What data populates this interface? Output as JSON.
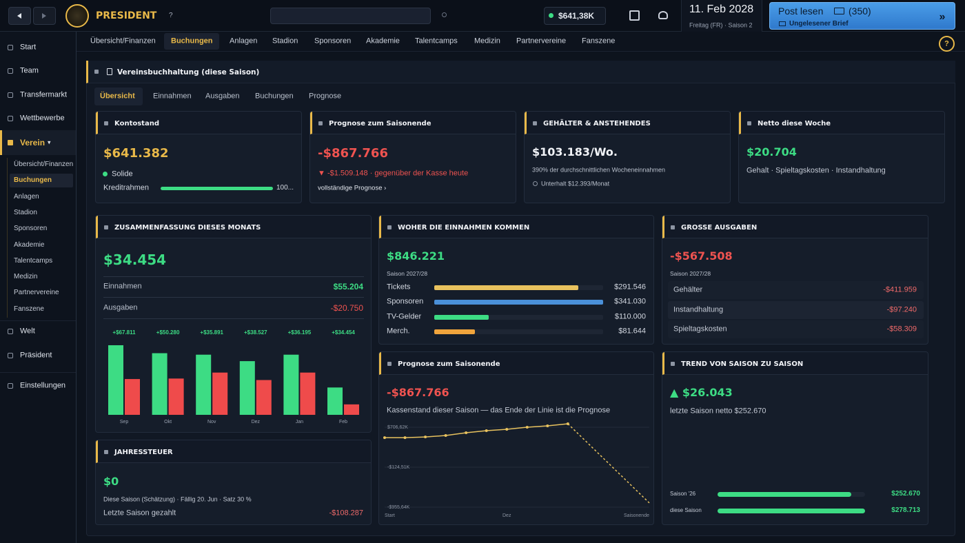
{
  "topbar": {
    "club": "PRESIDENT",
    "help": "?",
    "balance": "$641,38K",
    "date": "11. Feb 2028",
    "date_sub": "Freitag (FR) · Saison 2",
    "mail_title": "Post lesen",
    "mail_count": "(350)",
    "mail_sub": "Ungelesener Brief",
    "mail_arrow": "»"
  },
  "sidebar": {
    "items_top": [
      "Start",
      "Team",
      "Transfermarkt",
      "Wettbewerbe"
    ],
    "club": "Verein",
    "caret": "▾",
    "items_bottom": [
      "Welt",
      "Präsident"
    ],
    "settings": "Einstellungen"
  },
  "tabs": [
    "Übersicht/Finanzen",
    "Buchungen",
    "Anlagen",
    "Stadion",
    "Sponsoren",
    "Akademie",
    "Talentcamps",
    "Medizin",
    "Partnervereine",
    "Fanszene"
  ],
  "active_tab": 1,
  "help": "?",
  "panel": {
    "title": "Vereinsbuchhaltung (diese Saison)",
    "subtabs": [
      "Übersicht",
      "Einnahmen",
      "Ausgaben",
      "Buchungen",
      "Prognose"
    ],
    "active_subtab": 0
  },
  "cards": {
    "balance": {
      "title": "Kontostand",
      "value": "$641.382",
      "status": "Solide",
      "credit_label": "Kreditrahmen",
      "credit_value": "100..."
    },
    "outlook": {
      "title": "Prognose zum Saisonende",
      "value": "-$867.766",
      "delta": "▼ -$1.509.148 · gegenüber der Kasse heute",
      "link": "vollständige Prognose ›"
    },
    "wages": {
      "title": "GEHÄLTER & ANSTEHENDES",
      "value": "$103.183/Wo.",
      "sub": "390% der durchschnittlichen Wocheneinnahmen",
      "upkeep": "Unterhalt $12.393/Monat"
    },
    "week": {
      "title": "Netto diese Woche",
      "value": "$20.704",
      "sub": "Gehalt · Spieltagskosten · Instandhaltung"
    },
    "summary": {
      "title": "ZUSAMMENFASSUNG DIESES MONATS",
      "value": "$34.454",
      "income_label": "Einnahmen",
      "income": "$55.204",
      "expense_label": "Ausgaben",
      "expense": "-$20.750",
      "chart": {
        "type": "bar",
        "categories": [
          "Sep",
          "Okt",
          "Nov",
          "Dez",
          "Jan",
          "Feb"
        ],
        "top_labels": [
          "+$67.811",
          "+$50.280",
          "+$35.891",
          "+$38.527",
          "+$36.195",
          "+$34.454"
        ],
        "series": [
          {
            "color": "#3ddc84",
            "values": [
              140000,
              124000,
              121000,
              108000,
              121000,
              55000
            ]
          },
          {
            "color": "#ef4b4b",
            "values": [
              72000,
              73000,
              85000,
              70000,
              85000,
              21000
            ]
          }
        ],
        "ylim": [
          0,
          140000
        ]
      }
    },
    "income": {
      "title": "WOHER DIE EINNAHMEN KOMMEN",
      "value": "$846.221",
      "season": "Saison 2027/28",
      "chart": {
        "type": "bar",
        "orientation": "horizontal",
        "categories": [
          "Tickets",
          "Sponsoren",
          "TV-Gelder",
          "Merch."
        ],
        "values": [
          291546,
          341030,
          110000,
          81644
        ],
        "value_labels": [
          "$291.546",
          "$341.030",
          "$110.000",
          "$81.644"
        ],
        "colors": [
          "#e8c25e",
          "#4a90d9",
          "#3ddc84",
          "#f0a43c"
        ],
        "xlim": [
          0,
          341030
        ]
      }
    },
    "expenses": {
      "title": "GROSSE AUSGABEN",
      "value": "-$567.508",
      "season": "Saison 2027/28",
      "rows": [
        [
          "Gehälter",
          "-$411.959"
        ],
        [
          "Instandhaltung",
          "-$97.240"
        ],
        [
          "Spieltagskosten",
          "-$58.309"
        ]
      ]
    },
    "forecast": {
      "title": "Prognose zum Saisonende",
      "value": "-$867.766",
      "sub": "Kassenstand dieser Saison — das Ende der Linie ist die Prognose",
      "chart": {
        "type": "line",
        "x": [
          0,
          1,
          2,
          3,
          4,
          5,
          6,
          7,
          8,
          9,
          13
        ],
        "values": [
          490000,
          490000,
          505000,
          534000,
          592000,
          635000,
          664000,
          707000,
          735000,
          779000,
          -867766
        ],
        "forecast_start": 9,
        "color": "#e8c25e",
        "xlim": [
          0,
          13
        ],
        "xticks": [
          {
            "value": 0,
            "label": "Start"
          },
          {
            "value": 6,
            "label": "Dez"
          },
          {
            "value": 13,
            "label": "Saisonende"
          }
        ],
        "ylim": [
          -955640,
          706620
        ],
        "yticks": [
          {
            "value": 706620,
            "label": "$706,62K"
          },
          {
            "value": -124510,
            "label": "-$124,51K"
          },
          {
            "value": -955640,
            "label": "-$955,64K"
          }
        ],
        "grid": true
      }
    },
    "trend": {
      "title": "TREND VON SAISON ZU SAISON",
      "value": "▲ $26.043",
      "sub": "letzte Saison netto $252.670",
      "chart": {
        "type": "bar",
        "orientation": "horizontal",
        "categories": [
          "Saison '26",
          "diese Saison"
        ],
        "values": [
          252670,
          278713
        ],
        "value_labels": [
          "$252.670",
          "$278.713"
        ],
        "color": "#3ddc84",
        "xlim": [
          0,
          278713
        ]
      }
    },
    "tax": {
      "title": "JAHRESSTEUER",
      "value": "$0",
      "sub": "Diese Saison (Schätzung) · Fällig 20. Jun · Satz 30 %",
      "row_label": "Letzte Saison gezahlt",
      "row_value": "-$108.287"
    }
  }
}
